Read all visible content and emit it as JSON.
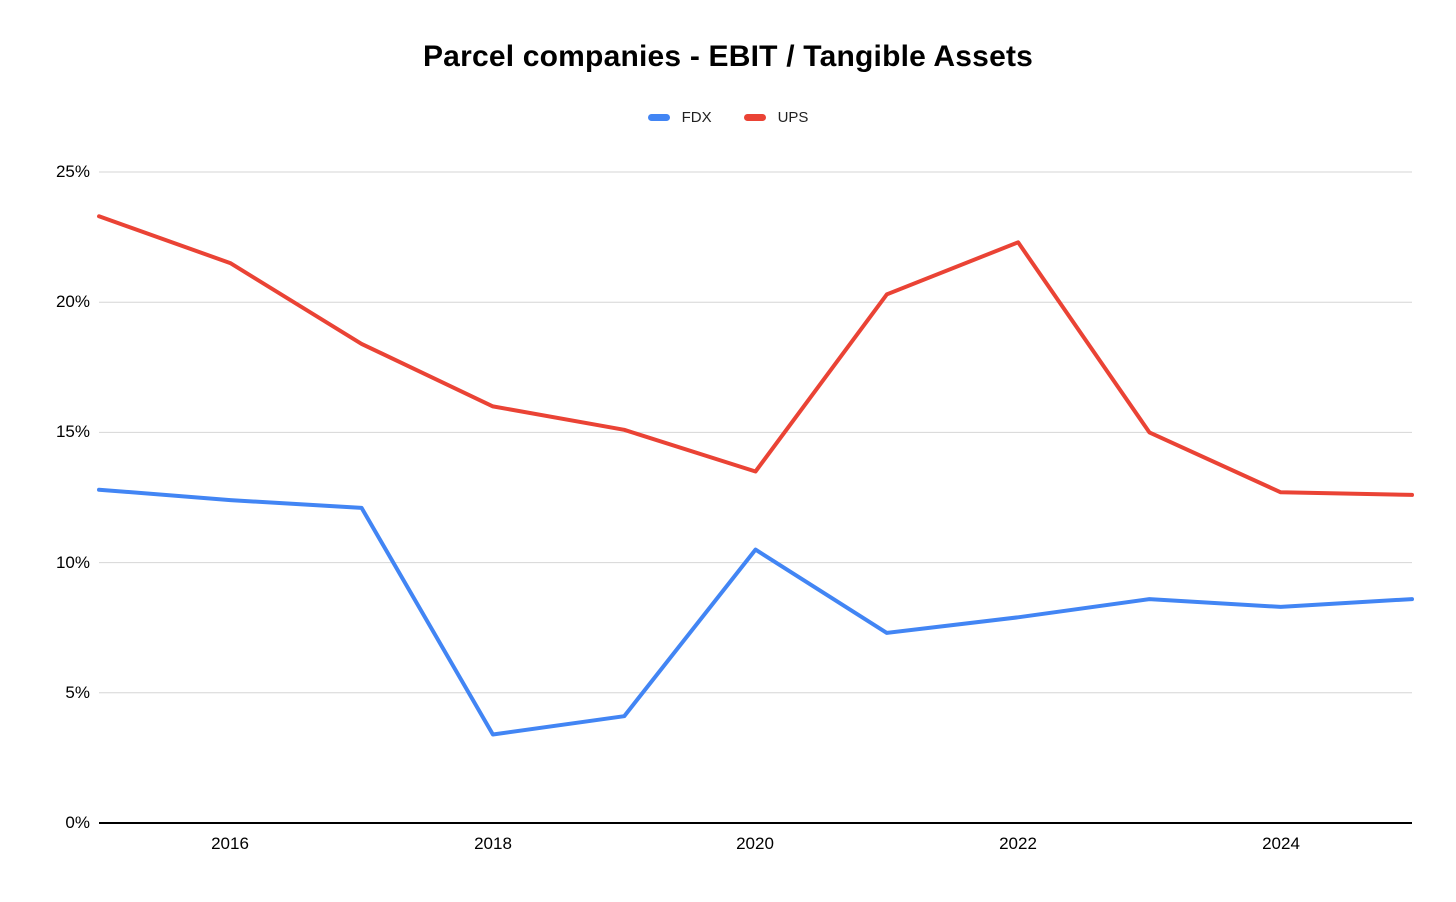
{
  "chart_data": {
    "type": "line",
    "title": "Parcel companies - EBIT / Tangible Assets",
    "xlabel": "",
    "ylabel": "",
    "x": [
      2015,
      2016,
      2017,
      2018,
      2019,
      2020,
      2021,
      2022,
      2023,
      2024,
      2025
    ],
    "series": [
      {
        "name": "FDX",
        "color": "#4285f4",
        "values": [
          12.8,
          12.4,
          12.1,
          3.4,
          4.1,
          10.5,
          7.3,
          7.9,
          8.6,
          8.3,
          8.6
        ]
      },
      {
        "name": "UPS",
        "color": "#ea4335",
        "values": [
          23.3,
          21.5,
          18.4,
          16.0,
          15.1,
          13.5,
          20.3,
          22.3,
          15.0,
          12.7,
          12.6
        ]
      }
    ],
    "ylim": [
      0,
      25
    ],
    "yticks": [
      25,
      20,
      15,
      10,
      5,
      0
    ],
    "yticklabels": [
      "25%",
      "20%",
      "15%",
      "10%",
      "5%",
      "0%"
    ],
    "xticks": [
      2016,
      2018,
      2020,
      2022,
      2024
    ],
    "xticklabels": [
      "2016",
      "2018",
      "2020",
      "2022",
      "2024"
    ],
    "grid": true,
    "legend_position": "top",
    "gridline_color": "#d6d6d6",
    "axis_color": "#000000",
    "background_color": "#ffffff"
  }
}
